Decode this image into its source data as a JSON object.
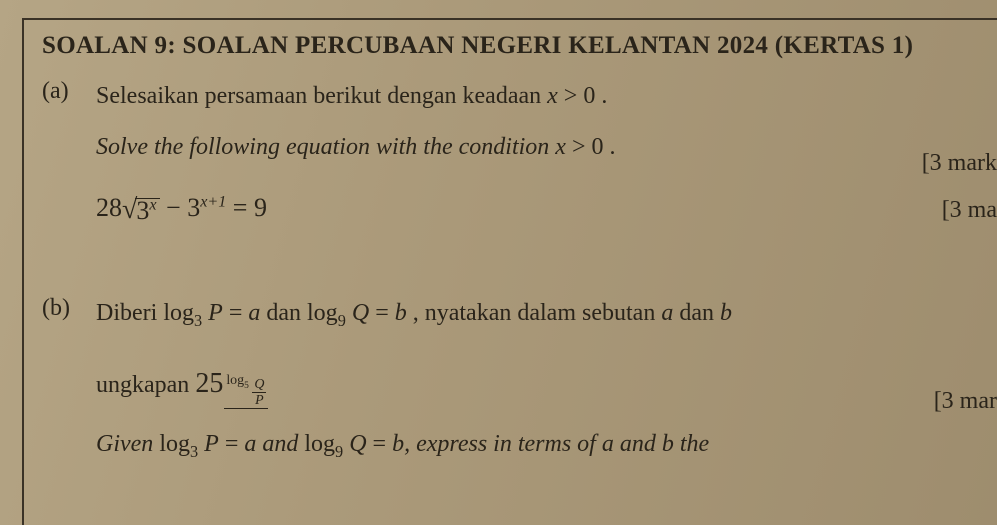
{
  "header": {
    "title": "SOALAN 9: SOALAN PERCUBAAN NEGERI KELANTAN 2024 (KERTAS 1)"
  },
  "partA": {
    "label": "(a)",
    "line1_prefix": "Selesaikan persamaan berikut dengan keadaan ",
    "line1_cond_var": "x",
    "line1_cond_rest": " > 0 .",
    "line2_prefix": "Solve the following equation with the condition ",
    "line2_cond_var": "x",
    "line2_cond_rest": " > 0 .",
    "marks1": "[3 mark",
    "marks2": "[3 ma",
    "eq": {
      "coef": "28",
      "base1": "3",
      "exp1": "x",
      "minus": " − ",
      "base2": "3",
      "exp2": "x+1",
      "eq": " = ",
      "rhs": "9"
    }
  },
  "partB": {
    "label": "(b)",
    "line1_pre": "Diberi ",
    "log1_op": "log",
    "log1_base": "3",
    "log1_arg": "P",
    "eq1": " = ",
    "a": "a",
    "dan1": " dan ",
    "log2_op": "log",
    "log2_base": "9",
    "log2_arg": "Q",
    "eq2": " = ",
    "b": "b",
    "line1_post": " , nyatakan dalam sebutan ",
    "and1": " dan ",
    "marks": "[3 mar",
    "ungk_pre": "ungkapan ",
    "big25": "25",
    "explog_op": "log",
    "explog_base": "5",
    "explog_num": "Q",
    "explog_den": "P",
    "given_pre": "Given ",
    "and2": " and ",
    "given_post": ", express in terms of ",
    "the": " the"
  }
}
